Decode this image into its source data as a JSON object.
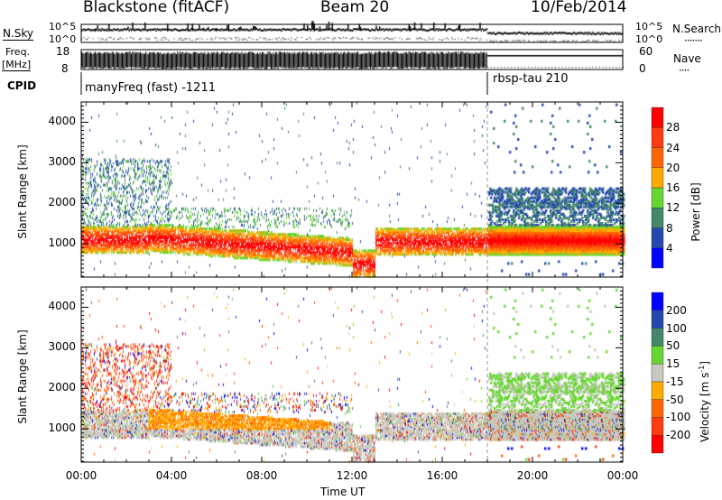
{
  "header": {
    "title": "Blackstone (fitACF)",
    "beam": "Beam 20",
    "date": "10/Feb/2014"
  },
  "aux": {
    "nsky_label": "N.Sky",
    "nsearch_label": "N.Search",
    "nsearch_legend": "·······",
    "freq_label_1": "Freq.",
    "freq_label_2": "[MHz]",
    "nave_label": "Nave",
    "nave_legend": "····",
    "cpid_label": "CPID",
    "noise_ticks": [
      "10^5",
      "10^0"
    ],
    "freq_ticks": [
      "18",
      "8"
    ],
    "nave_ticks": [
      "60",
      "0"
    ],
    "cpid_segments": [
      {
        "name": "manyFreq (fast) -1211",
        "start_hour": 0
      },
      {
        "name": "rbsp-tau 210",
        "start_hour": 18
      }
    ]
  },
  "chart_data": [
    {
      "type": "heatmap",
      "title": "Power",
      "xlabel": "",
      "ylabel": "Slant Range [km]",
      "xlim": [
        0,
        24
      ],
      "ylim": [
        180,
        4500
      ],
      "yticks": [
        "1000",
        "2000",
        "3000",
        "4000"
      ],
      "colorbar": {
        "label": "Power [dB]",
        "ticks": [
          "4",
          "8",
          "12",
          "16",
          "20",
          "24",
          "28"
        ],
        "colors": [
          "#0000ff",
          "#2448b0",
          "#44886a",
          "#66d630",
          "#ffaa00",
          "#ff6600",
          "#ff3a10",
          "#ff0000"
        ]
      }
    },
    {
      "type": "heatmap",
      "title": "Velocity",
      "xlabel": "Time UT",
      "ylabel": "Slant Range [km]",
      "xlim": [
        0,
        24
      ],
      "ylim": [
        180,
        4500
      ],
      "xticks": [
        "00:00",
        "04:00",
        "08:00",
        "12:00",
        "16:00",
        "20:00",
        "00:00"
      ],
      "yticks": [
        "1000",
        "2000",
        "3000",
        "4000"
      ],
      "colorbar": {
        "label_main": "Velocity [m s",
        "label_sup": "-1",
        "label_end": "]",
        "ticks": [
          "-200",
          "-100",
          "-50",
          "-15",
          "15",
          "50",
          "100",
          "200"
        ],
        "colors": [
          "#ff0000",
          "#ff3a10",
          "#ff6600",
          "#ffaa00",
          "#c8c8c0",
          "#66d630",
          "#44886a",
          "#2448b0",
          "#0000ff"
        ]
      }
    }
  ]
}
